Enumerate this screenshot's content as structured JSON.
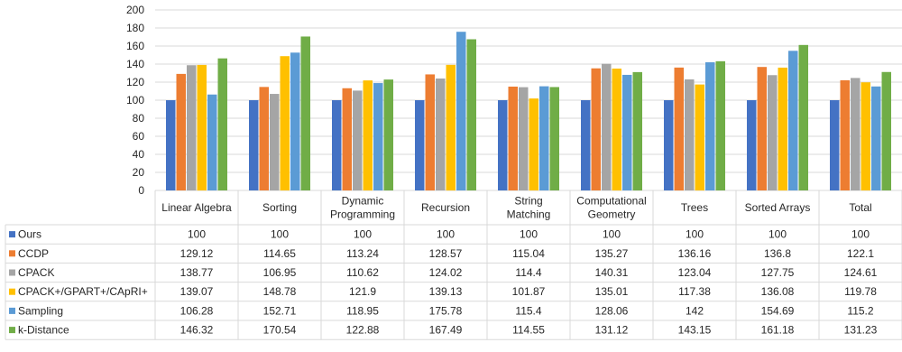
{
  "chart_data": {
    "type": "bar",
    "ylim": [
      0,
      200
    ],
    "ytick_step": 20,
    "grid": true,
    "legend_placement": "data-table-left",
    "categories": [
      [
        "Linear Algebra"
      ],
      [
        "Sorting"
      ],
      [
        "Dynamic",
        "Programming"
      ],
      [
        "Recursion"
      ],
      [
        "String",
        "Matching"
      ],
      [
        "Computational",
        "Geometry"
      ],
      [
        "Trees"
      ],
      [
        "Sorted Arrays"
      ],
      [
        "Total"
      ]
    ],
    "series": [
      {
        "name": "Ours",
        "color": "#4472C4",
        "values": [
          100,
          100,
          100,
          100,
          100,
          100,
          100,
          100,
          100
        ]
      },
      {
        "name": "CCDP",
        "color": "#ED7D31",
        "values": [
          129.12,
          114.65,
          113.24,
          128.57,
          115.04,
          135.27,
          136.16,
          136.8,
          122.1
        ]
      },
      {
        "name": "CPACK",
        "color": "#A5A5A5",
        "values": [
          138.77,
          106.95,
          110.62,
          124.02,
          114.4,
          140.31,
          123.04,
          127.75,
          124.61
        ]
      },
      {
        "name": "CPACK+/GPART+/CApRI+",
        "color": "#FFC000",
        "values": [
          139.07,
          148.78,
          121.9,
          139.13,
          101.87,
          135.01,
          117.38,
          136.08,
          119.78
        ]
      },
      {
        "name": "Sampling",
        "color": "#5B9BD5",
        "values": [
          106.28,
          152.71,
          118.95,
          175.78,
          115.4,
          128.06,
          142,
          154.69,
          115.2
        ]
      },
      {
        "name": "k-Distance",
        "color": "#70AD47",
        "values": [
          146.32,
          170.54,
          122.88,
          167.49,
          114.55,
          131.12,
          143.15,
          161.18,
          131.23
        ]
      }
    ]
  }
}
